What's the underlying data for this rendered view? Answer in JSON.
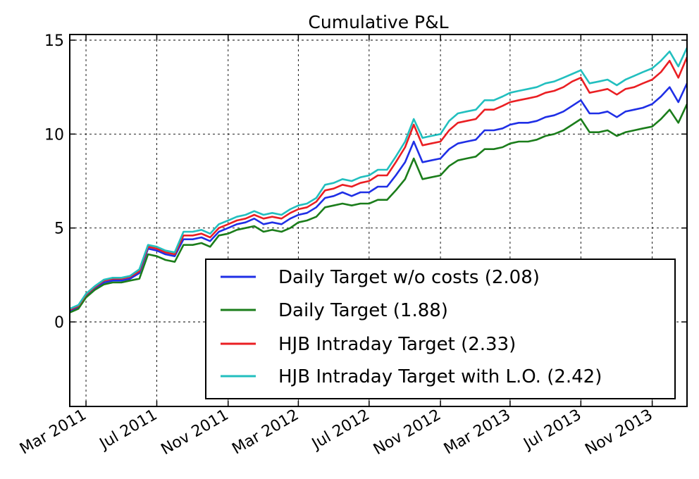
{
  "chart_data": {
    "type": "line",
    "title": "Cumulative P&L",
    "xlabel": "",
    "ylabel": "",
    "xlim": [
      "2011-02-01",
      "2013-12-31"
    ],
    "ylim": [
      -4.5,
      15.3
    ],
    "grid": true,
    "y_ticks": [
      {
        "value": 0,
        "label": "0"
      },
      {
        "value": 5,
        "label": "5"
      },
      {
        "value": 10,
        "label": "10"
      },
      {
        "value": 15,
        "label": "15"
      }
    ],
    "x_ticks": [
      {
        "date": "2011-03-01",
        "label": "Mar 2011"
      },
      {
        "date": "2011-07-01",
        "label": "Jul 2011"
      },
      {
        "date": "2011-11-01",
        "label": "Nov 2011"
      },
      {
        "date": "2012-03-01",
        "label": "Mar 2012"
      },
      {
        "date": "2012-07-01",
        "label": "Jul 2012"
      },
      {
        "date": "2012-11-01",
        "label": "Nov 2012"
      },
      {
        "date": "2013-03-01",
        "label": "Mar 2013"
      },
      {
        "date": "2013-07-01",
        "label": "Jul 2013"
      },
      {
        "date": "2013-11-01",
        "label": "Nov 2013"
      }
    ],
    "legend_position": "lower-right",
    "x": [
      "2011-02-01",
      "2011-02-16",
      "2011-03-01",
      "2011-03-16",
      "2011-04-01",
      "2011-04-16",
      "2011-05-01",
      "2011-05-16",
      "2011-06-01",
      "2011-06-16",
      "2011-07-01",
      "2011-07-16",
      "2011-08-01",
      "2011-08-16",
      "2011-09-01",
      "2011-09-16",
      "2011-10-01",
      "2011-10-16",
      "2011-11-01",
      "2011-11-16",
      "2011-12-01",
      "2011-12-16",
      "2012-01-01",
      "2012-01-16",
      "2012-02-01",
      "2012-02-16",
      "2012-03-01",
      "2012-03-16",
      "2012-04-01",
      "2012-04-16",
      "2012-05-01",
      "2012-05-16",
      "2012-06-01",
      "2012-06-16",
      "2012-07-01",
      "2012-07-16",
      "2012-08-01",
      "2012-08-16",
      "2012-09-01",
      "2012-09-16",
      "2012-10-01",
      "2012-10-16",
      "2012-11-01",
      "2012-11-16",
      "2012-12-01",
      "2012-12-16",
      "2013-01-01",
      "2013-01-16",
      "2013-02-01",
      "2013-02-16",
      "2013-03-01",
      "2013-03-16",
      "2013-04-01",
      "2013-04-16",
      "2013-05-01",
      "2013-05-16",
      "2013-06-01",
      "2013-06-16",
      "2013-07-01",
      "2013-07-16",
      "2013-08-01",
      "2013-08-16",
      "2013-09-01",
      "2013-09-16",
      "2013-10-01",
      "2013-10-16",
      "2013-11-01",
      "2013-11-16",
      "2013-12-01",
      "2013-12-16",
      "2013-12-31"
    ],
    "series": [
      {
        "name": "Daily Target w/o costs (2.08)",
        "color": "#1f2fe6",
        "values": [
          0.6,
          0.8,
          1.4,
          1.8,
          2.1,
          2.2,
          2.2,
          2.3,
          2.6,
          3.9,
          3.8,
          3.6,
          3.5,
          4.4,
          4.4,
          4.5,
          4.3,
          4.8,
          5.0,
          5.2,
          5.3,
          5.5,
          5.2,
          5.3,
          5.2,
          5.5,
          5.7,
          5.8,
          6.1,
          6.6,
          6.7,
          6.9,
          6.7,
          6.9,
          6.9,
          7.2,
          7.2,
          7.8,
          8.5,
          9.6,
          8.5,
          8.6,
          8.7,
          9.2,
          9.5,
          9.6,
          9.7,
          10.2,
          10.2,
          10.3,
          10.5,
          10.6,
          10.6,
          10.7,
          10.9,
          11.0,
          11.2,
          11.5,
          11.8,
          11.1,
          11.1,
          11.2,
          10.9,
          11.2,
          11.3,
          11.4,
          11.6,
          12.0,
          12.5,
          11.7,
          12.7
        ]
      },
      {
        "name": "Daily Target (1.88)",
        "color": "#1b7d1b",
        "values": [
          0.5,
          0.7,
          1.3,
          1.7,
          2.0,
          2.1,
          2.1,
          2.2,
          2.3,
          3.6,
          3.5,
          3.3,
          3.2,
          4.1,
          4.1,
          4.2,
          4.0,
          4.6,
          4.7,
          4.9,
          5.0,
          5.1,
          4.8,
          4.9,
          4.8,
          5.0,
          5.3,
          5.4,
          5.6,
          6.1,
          6.2,
          6.3,
          6.2,
          6.3,
          6.3,
          6.5,
          6.5,
          7.0,
          7.6,
          8.7,
          7.6,
          7.7,
          7.8,
          8.3,
          8.6,
          8.7,
          8.8,
          9.2,
          9.2,
          9.3,
          9.5,
          9.6,
          9.6,
          9.7,
          9.9,
          10.0,
          10.2,
          10.5,
          10.8,
          10.1,
          10.1,
          10.2,
          9.9,
          10.1,
          10.2,
          10.3,
          10.4,
          10.8,
          11.3,
          10.6,
          11.6
        ]
      },
      {
        "name": "HJB Intraday Target (2.33)",
        "color": "#ea1f23",
        "values": [
          0.65,
          0.85,
          1.45,
          1.85,
          2.2,
          2.3,
          2.3,
          2.4,
          2.7,
          4.0,
          3.9,
          3.7,
          3.6,
          4.6,
          4.6,
          4.7,
          4.5,
          5.0,
          5.2,
          5.4,
          5.5,
          5.7,
          5.5,
          5.6,
          5.5,
          5.8,
          6.0,
          6.1,
          6.4,
          7.0,
          7.1,
          7.3,
          7.2,
          7.4,
          7.5,
          7.8,
          7.8,
          8.5,
          9.3,
          10.5,
          9.4,
          9.5,
          9.6,
          10.2,
          10.6,
          10.7,
          10.8,
          11.3,
          11.3,
          11.5,
          11.7,
          11.8,
          11.9,
          12.0,
          12.2,
          12.3,
          12.5,
          12.8,
          13.0,
          12.2,
          12.3,
          12.4,
          12.1,
          12.4,
          12.5,
          12.7,
          12.9,
          13.3,
          13.9,
          13.0,
          14.1
        ]
      },
      {
        "name": "HJB Intraday Target with L.O. (2.42)",
        "color": "#22bfbf",
        "values": [
          0.7,
          0.9,
          1.5,
          1.9,
          2.25,
          2.35,
          2.35,
          2.45,
          2.8,
          4.1,
          4.0,
          3.8,
          3.7,
          4.8,
          4.8,
          4.9,
          4.7,
          5.2,
          5.4,
          5.6,
          5.7,
          5.9,
          5.7,
          5.8,
          5.7,
          6.0,
          6.2,
          6.3,
          6.6,
          7.3,
          7.4,
          7.6,
          7.5,
          7.7,
          7.8,
          8.1,
          8.1,
          8.8,
          9.6,
          10.8,
          9.8,
          9.9,
          10.0,
          10.7,
          11.1,
          11.2,
          11.3,
          11.8,
          11.8,
          12.0,
          12.2,
          12.3,
          12.4,
          12.5,
          12.7,
          12.8,
          13.0,
          13.2,
          13.4,
          12.7,
          12.8,
          12.9,
          12.6,
          12.9,
          13.1,
          13.3,
          13.5,
          13.9,
          14.4,
          13.6,
          14.6
        ]
      }
    ]
  }
}
